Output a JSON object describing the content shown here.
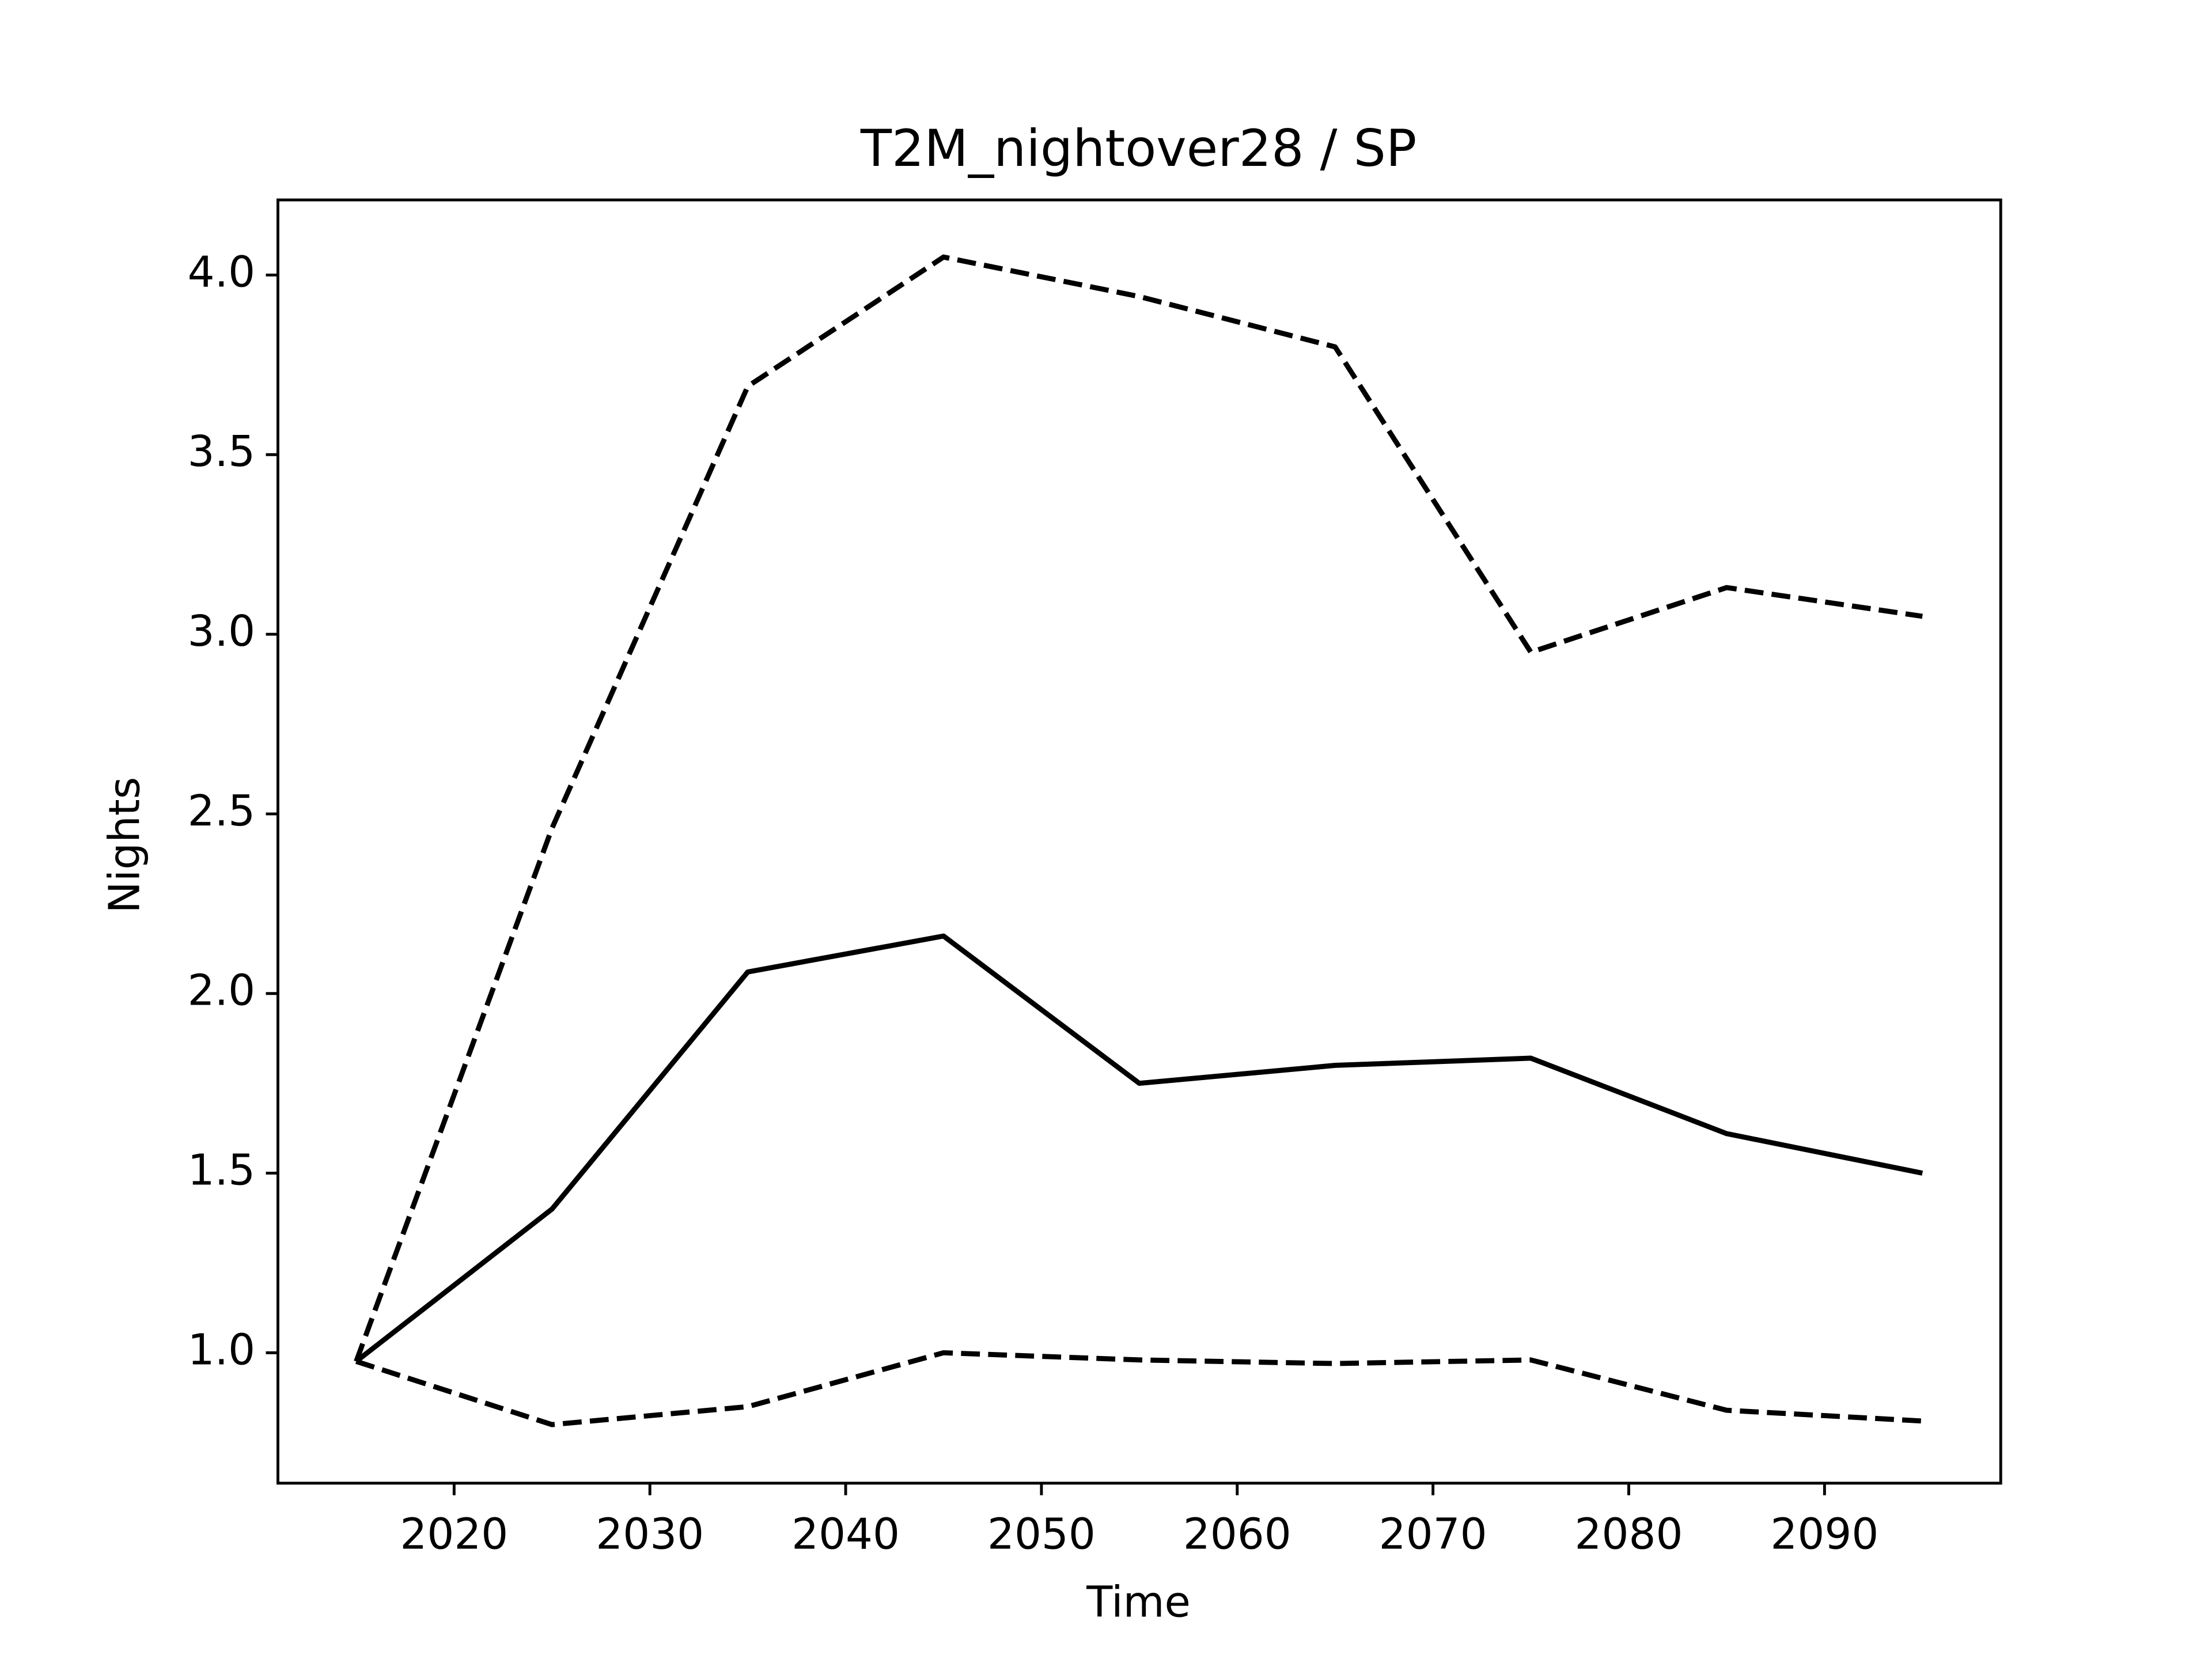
{
  "chart_data": {
    "type": "line",
    "title": "T2M_nightover28 / SP",
    "xlabel": "Time",
    "ylabel": "Nights",
    "x": [
      2015,
      2025,
      2035,
      2045,
      2055,
      2065,
      2075,
      2085,
      2095
    ],
    "series": [
      {
        "color": "#000000",
        "linestyle": "dashed",
        "values": [
          0.976,
          2.46,
          3.69,
          4.05,
          3.94,
          3.8,
          2.95,
          3.13,
          3.05
        ]
      },
      {
        "color": "#000000",
        "linestyle": "solid",
        "values": [
          0.976,
          1.4,
          2.06,
          2.16,
          1.75,
          1.8,
          1.82,
          1.61,
          1.5
        ]
      },
      {
        "color": "#000000",
        "linestyle": "dashed",
        "values": [
          0.976,
          0.8,
          0.85,
          1.0,
          0.98,
          0.97,
          0.98,
          0.84,
          0.81
        ]
      }
    ],
    "xlim": [
      2011,
      2099
    ],
    "ylim": [
      0.637,
      4.209
    ],
    "xticks": [
      2020,
      2030,
      2040,
      2050,
      2060,
      2070,
      2080,
      2090
    ],
    "yticks": [
      {
        "value": 1,
        "label": "1.0"
      },
      1.5,
      {
        "value": 2,
        "label": "2.0"
      },
      2.5,
      {
        "value": 3,
        "label": "3.0"
      },
      3.5,
      {
        "value": 4,
        "label": "4.0"
      }
    ],
    "grid": false
  }
}
